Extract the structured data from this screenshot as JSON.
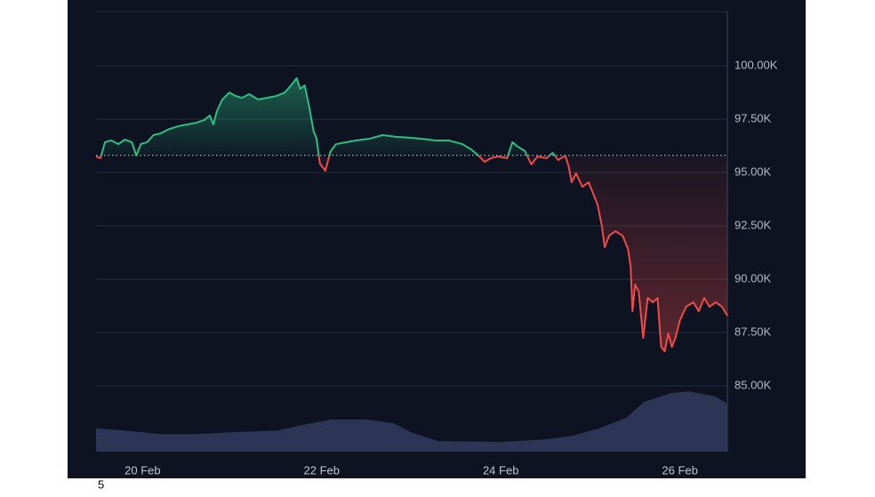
{
  "chart_data": {
    "type": "baseline",
    "annotation": "5",
    "x": [
      19.48,
      19.53,
      19.58,
      19.65,
      19.73,
      19.8,
      19.88,
      19.93,
      19.98,
      20.05,
      20.12,
      20.2,
      20.3,
      20.4,
      20.5,
      20.6,
      20.69,
      20.75,
      20.79,
      20.83,
      20.89,
      20.97,
      21.04,
      21.11,
      21.19,
      21.29,
      21.39,
      21.49,
      21.59,
      21.69,
      21.72,
      21.76,
      21.81,
      21.86,
      21.91,
      21.94,
      21.98,
      22.04,
      22.1,
      22.16,
      22.28,
      22.38,
      22.53,
      22.68,
      22.83,
      22.98,
      23.12,
      23.27,
      23.42,
      23.57,
      23.67,
      23.75,
      23.82,
      23.89,
      23.97,
      24.07,
      24.13,
      24.19,
      24.27,
      24.34,
      24.41,
      24.51,
      24.58,
      24.64,
      24.72,
      24.76,
      24.79,
      24.84,
      24.91,
      24.98,
      25.04,
      25.08,
      25.13,
      25.16,
      25.21,
      25.28,
      25.36,
      25.42,
      25.45,
      25.47,
      25.5,
      25.54,
      25.59,
      25.64,
      25.7,
      25.75,
      25.79,
      25.83,
      25.87,
      25.91,
      25.95,
      26.0,
      26.07,
      26.15,
      26.21,
      26.27,
      26.33,
      26.4,
      26.47,
      26.53
    ],
    "series": [
      {
        "up_color": "#2ebd85",
        "down_color": "#ef4a4a",
        "values": [
          95750,
          95670,
          96420,
          96500,
          96330,
          96540,
          96420,
          95790,
          96330,
          96420,
          96750,
          96830,
          97040,
          97170,
          97250,
          97330,
          97460,
          97670,
          97250,
          97880,
          98420,
          98750,
          98580,
          98500,
          98670,
          98420,
          98500,
          98580,
          98750,
          99250,
          99420,
          98920,
          99080,
          98080,
          96920,
          96630,
          95420,
          95080,
          96000,
          96330,
          96420,
          96500,
          96580,
          96750,
          96670,
          96630,
          96580,
          96500,
          96500,
          96330,
          96080,
          95790,
          95500,
          95670,
          95750,
          95670,
          96420,
          96210,
          96000,
          95380,
          95750,
          95670,
          95920,
          95580,
          95790,
          95250,
          94540,
          94960,
          94330,
          94540,
          93920,
          93500,
          92460,
          91500,
          92040,
          92250,
          92040,
          91420,
          90580,
          88500,
          89750,
          89420,
          87250,
          89120,
          88920,
          89120,
          86830,
          86620,
          87460,
          86830,
          87250,
          88080,
          88710,
          88920,
          88500,
          89120,
          88710,
          88920,
          88710,
          88290
        ]
      }
    ],
    "baseline": 95800,
    "volume": {
      "color": "#2c3556",
      "axis": "y2",
      "x": [
        19.48,
        19.8,
        20.2,
        20.6,
        21.0,
        21.5,
        21.8,
        22.1,
        22.5,
        22.8,
        23.0,
        23.3,
        24.0,
        24.5,
        24.8,
        25.1,
        25.4,
        25.6,
        25.9,
        26.1,
        26.4,
        26.53
      ],
      "values": [
        5.3,
        4.8,
        4.0,
        4.0,
        4.4,
        4.8,
        6.1,
        7.3,
        7.3,
        6.5,
        4.4,
        2.4,
        2.2,
        2.8,
        3.6,
        5.3,
        7.7,
        11.3,
        13.3,
        13.7,
        12.5,
        10.9
      ]
    },
    "xlim": [
      19.48,
      26.53
    ],
    "xticks": [
      {
        "value": 20,
        "label": "20 Feb"
      },
      {
        "value": 22,
        "label": "22 Feb"
      },
      {
        "value": 24,
        "label": "24 Feb"
      },
      {
        "value": 26,
        "label": "26 Feb"
      }
    ],
    "ylim": [
      81920,
      102540
    ],
    "yticks": [
      {
        "value": 85000,
        "label": "85.00K"
      },
      {
        "value": 87500,
        "label": "87.50K"
      },
      {
        "value": 90000,
        "label": "90.00K"
      },
      {
        "value": 92500,
        "label": "92.50K"
      },
      {
        "value": 95000,
        "label": "95.00K"
      },
      {
        "value": 97500,
        "label": "97.50K"
      },
      {
        "value": 100000,
        "label": "100.00K"
      }
    ],
    "y2lim": [
      0,
      100
    ],
    "grid": true
  }
}
